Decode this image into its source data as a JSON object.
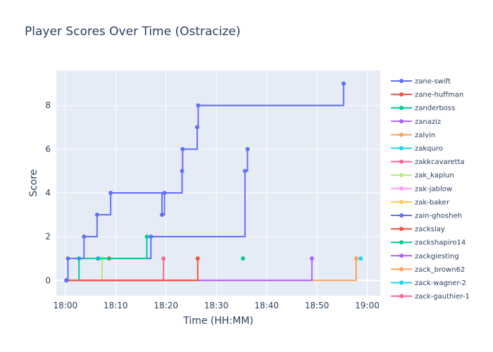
{
  "chart_data": {
    "type": "line",
    "line_shape": "step",
    "title": "Player Scores Over Time (Ostracize)",
    "xlabel": "Time (HH:MM)",
    "ylabel": "Score",
    "x_ticks": [
      "18:00",
      "18:10",
      "18:20",
      "18:30",
      "18:40",
      "18:50",
      "19:00"
    ],
    "y_ticks": [
      0,
      2,
      4,
      6,
      8
    ],
    "xlim": [
      "17:58.2",
      "19:02.6"
    ],
    "ylim": [
      -0.7,
      9.6
    ],
    "grid": true,
    "legend_position": "right",
    "series": [
      {
        "name": "zane-swift",
        "color": "#636efa",
        "points": [
          [
            "18:00.2",
            0
          ],
          [
            "18:00.5",
            1
          ],
          [
            "18:03.7",
            2
          ],
          [
            "18:06.3",
            3
          ],
          [
            "18:09.0",
            4
          ],
          [
            "18:19.2",
            3
          ],
          [
            "18:19.7",
            4
          ],
          [
            "18:23.2",
            5
          ],
          [
            "18:23.3",
            6
          ],
          [
            "18:26.2",
            7
          ],
          [
            "18:26.4",
            8
          ],
          [
            "18:55.3",
            9
          ]
        ]
      },
      {
        "name": "zane-huffman",
        "color": "#ef553b",
        "points": [
          [
            "18:00.2",
            0
          ],
          [
            "18:26.3",
            1
          ]
        ]
      },
      {
        "name": "zanderboss",
        "color": "#00cc96",
        "points": [
          [
            "18:00.2",
            0
          ],
          [
            "18:02.7",
            1
          ],
          [
            "18:16.2",
            2
          ]
        ]
      },
      {
        "name": "zanaziz",
        "color": "#ab63fa",
        "points": [
          [
            "18:00.2",
            0
          ],
          [
            "18:49.0",
            1
          ]
        ]
      },
      {
        "name": "zalvin",
        "color": "#ffa15a",
        "points": [
          [
            "18:00.2",
            0
          ],
          [
            "18:57.8",
            1
          ]
        ]
      },
      {
        "name": "zakquro",
        "color": "#19d3f3",
        "points": [
          [
            "18:58.7",
            1
          ]
        ]
      },
      {
        "name": "zakkcavaretta",
        "color": "#ff6692",
        "points": [
          [
            "18:00.2",
            0
          ],
          [
            "18:19.5",
            1
          ]
        ]
      },
      {
        "name": "zak_kaplun",
        "color": "#b6e880",
        "points": [
          [
            "18:00.2",
            0
          ],
          [
            "18:07.3",
            1
          ]
        ]
      },
      {
        "name": "zak-jablow",
        "color": "#ff97ff",
        "points": [
          [
            "18:00.2",
            0
          ]
        ]
      },
      {
        "name": "zak-baker",
        "color": "#fecb52",
        "points": [
          [
            "18:00.2",
            0
          ]
        ]
      },
      {
        "name": "zain-ghosheh",
        "color": "#636efa",
        "points": [
          [
            "18:06.5",
            1
          ],
          [
            "18:17.0",
            2
          ],
          [
            "18:35.7",
            5
          ],
          [
            "18:36.2",
            6
          ]
        ]
      },
      {
        "name": "zackslay",
        "color": "#ef553b",
        "points": [
          [
            "18:08.7",
            1
          ]
        ]
      },
      {
        "name": "zackshapiro14",
        "color": "#00cc96",
        "points": [
          [
            "18:35.3",
            1
          ]
        ]
      },
      {
        "name": "zackgiesting",
        "color": "#ab63fa",
        "points": []
      },
      {
        "name": "zack_brown62",
        "color": "#ffa15a",
        "points": []
      },
      {
        "name": "zack-wagner-2",
        "color": "#19d3f3",
        "points": []
      },
      {
        "name": "zack-gauthier-1",
        "color": "#ff6692",
        "points": []
      }
    ]
  }
}
